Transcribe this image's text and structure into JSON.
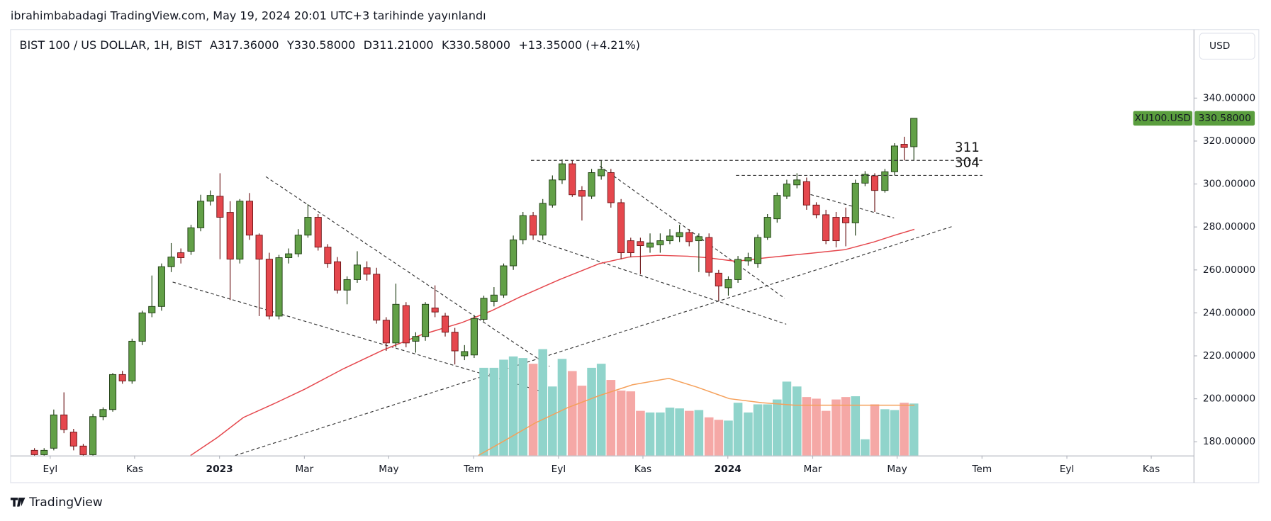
{
  "caption": "ibrahimbabadagi TradingView.com, May 19, 2024 20:01 UTC+3 tarihinde yayınlandı",
  "brand": "TradingView",
  "currency_button": "USD",
  "chart_data": {
    "type": "candlestick",
    "title": "BIST 100 / US DOLLAR, 1H, BIST",
    "ohlc": [
      {
        "key": "A",
        "value": "317.36000"
      },
      {
        "key": "Y",
        "value": "330.58000"
      },
      {
        "key": "D",
        "value": "311.21000"
      },
      {
        "key": "K",
        "value": "330.58000"
      }
    ],
    "change": "+13.35000 (+4.21%)",
    "symbol_tag": "XU100.USD",
    "last_label": "330.58000",
    "up_color": "#62a047",
    "down_color": "#e5474d",
    "up_border": "#1e3d12",
    "down_border": "#6b1416",
    "volume_up_color": "#90d4cb",
    "volume_down_color": "#f5a8a6",
    "tag_color": "#5a9e3e",
    "x": [
      2022.636,
      2022.655,
      2022.674,
      2022.694,
      2022.713,
      2022.732,
      2022.751,
      2022.771,
      2022.79,
      2022.809,
      2022.828,
      2022.848,
      2022.867,
      2022.886,
      2022.905,
      2022.924,
      2022.944,
      2022.963,
      2022.982,
      2023.001,
      2023.021,
      2023.04,
      2023.059,
      2023.078,
      2023.098,
      2023.117,
      2023.136,
      2023.155,
      2023.174,
      2023.194,
      2023.213,
      2023.232,
      2023.251,
      2023.271,
      2023.29,
      2023.309,
      2023.328,
      2023.347,
      2023.367,
      2023.386,
      2023.405,
      2023.424,
      2023.444,
      2023.463,
      2023.482,
      2023.501,
      2023.52,
      2023.54,
      2023.559,
      2023.578,
      2023.597,
      2023.617,
      2023.636,
      2023.655,
      2023.674,
      2023.694,
      2023.713,
      2023.732,
      2023.751,
      2023.77,
      2023.79,
      2023.809,
      2023.828,
      2023.847,
      2023.867,
      2023.886,
      2023.905,
      2023.924,
      2023.943,
      2023.963,
      2023.982,
      2024.001,
      2024.02,
      2024.04,
      2024.059,
      2024.078,
      2024.097,
      2024.116,
      2024.136,
      2024.155,
      2024.174,
      2024.193,
      2024.213,
      2024.232,
      2024.251,
      2024.27,
      2024.289,
      2024.309,
      2024.328,
      2024.347,
      2024.366
    ],
    "open": [
      176,
      174,
      177,
      192.5,
      184.5,
      178,
      174,
      191.7,
      195,
      211.3,
      208.3,
      226.8,
      240,
      243,
      261.5,
      268,
      268.7,
      279.6,
      292,
      294.3,
      286.8,
      265,
      292,
      276.2,
      265,
      238.5,
      265.7,
      267.5,
      276.2,
      284.5,
      270.6,
      263.8,
      250.6,
      255.5,
      261,
      258,
      236.6,
      226,
      243.4,
      226.8,
      229,
      242.3,
      238.5,
      231,
      220,
      220.4,
      237,
      245.3,
      248.3,
      261.9,
      274,
      285.3,
      276.2,
      290.2,
      301.9,
      309.4,
      297,
      294.3,
      303.8,
      305.3,
      291.3,
      273.6,
      273.2,
      270.6,
      271.7,
      273.6,
      275.5,
      277.4,
      273.6,
      275.1,
      258.5,
      251.7,
      255.5,
      264.2,
      263,
      275.1,
      283.8,
      294.3,
      299.6,
      301.1,
      290.2,
      285.7,
      284.5,
      284.5,
      281.9,
      300.4,
      303.8,
      297,
      305.7,
      318.5,
      317.36
    ],
    "high": [
      177,
      177,
      195,
      203,
      186,
      179,
      193,
      196,
      212,
      213,
      228,
      241,
      257.4,
      263,
      272.5,
      270,
      281,
      295,
      297,
      305,
      292,
      293,
      295.8,
      277,
      268,
      267,
      270,
      279,
      290.6,
      286,
      272,
      266,
      257,
      268.7,
      264,
      261,
      238,
      253.6,
      245,
      231,
      245,
      252.8,
      240,
      233,
      225,
      239,
      248,
      252,
      263,
      276,
      287,
      287,
      293,
      304,
      311.5,
      311,
      299,
      307,
      311,
      307,
      293,
      275,
      275,
      277,
      277,
      279,
      281,
      279,
      277,
      277,
      260,
      257,
      266.5,
      268,
      276.5,
      286,
      296,
      302,
      305,
      303,
      291.5,
      288,
      287,
      289,
      302,
      306,
      305,
      307,
      319,
      322,
      330.58
    ],
    "low": [
      172,
      173,
      176,
      184,
      176,
      172,
      172,
      190,
      194,
      207,
      207,
      225,
      238,
      241,
      259,
      263,
      267,
      278,
      290,
      265,
      246,
      263,
      274,
      238.5,
      237,
      237,
      263,
      266,
      275,
      269,
      261,
      249,
      244,
      254,
      255,
      235,
      222.3,
      224,
      224,
      221.5,
      227,
      238,
      229,
      216,
      218,
      219,
      236,
      243,
      247,
      260,
      272,
      274,
      274,
      289,
      300,
      294,
      283,
      293,
      302,
      289,
      265,
      266,
      258,
      268,
      268,
      272,
      273,
      271,
      259,
      257,
      245.7,
      248,
      254,
      262,
      261,
      274,
      282,
      293,
      298,
      288,
      284,
      272,
      270.5,
      271,
      276,
      299,
      287,
      296,
      304,
      311,
      311.21
    ],
    "close": [
      174,
      176,
      192.5,
      185.7,
      178,
      174,
      191.7,
      195,
      211.3,
      208.3,
      226.8,
      240,
      243,
      261.5,
      266,
      265.7,
      279.6,
      292,
      294.7,
      284.5,
      265,
      292,
      276.2,
      265,
      238.5,
      265.7,
      267.5,
      276.2,
      284.5,
      270.6,
      263,
      250.6,
      255.5,
      262.3,
      258,
      236.6,
      226,
      244,
      226,
      229,
      244,
      240.4,
      231,
      222.3,
      222,
      237.4,
      246.8,
      248.3,
      261.9,
      274,
      285.3,
      276.2,
      291,
      301.9,
      309.4,
      295,
      294.3,
      305.3,
      306.8,
      291.3,
      268,
      268,
      271.3,
      272.5,
      273.6,
      275.8,
      277.4,
      273.2,
      275.5,
      258.9,
      252.5,
      255.5,
      264.9,
      265.7,
      275.1,
      284.5,
      294.7,
      300,
      301.9,
      290.2,
      285.7,
      273.6,
      273.6,
      281.9,
      300.4,
      304.5,
      297,
      305.7,
      317.7,
      317,
      330.58
    ],
    "volume": [
      null,
      null,
      null,
      null,
      null,
      null,
      null,
      null,
      null,
      null,
      null,
      null,
      null,
      null,
      null,
      null,
      null,
      null,
      null,
      null,
      null,
      null,
      null,
      null,
      null,
      null,
      null,
      null,
      null,
      null,
      null,
      null,
      null,
      null,
      null,
      null,
      null,
      null,
      null,
      null,
      null,
      null,
      null,
      null,
      null,
      null,
      108,
      108,
      118,
      122,
      120,
      113,
      131,
      85,
      119,
      104,
      86,
      108,
      113,
      93,
      80,
      79,
      55,
      53,
      53,
      59,
      58,
      55,
      56,
      47,
      44,
      43,
      65,
      53,
      63,
      63,
      69,
      91,
      85,
      72,
      70,
      55,
      69,
      72,
      73,
      20,
      63,
      57,
      56,
      65,
      64
    ],
    "ma": {
      "color": "#e5474d",
      "x": [
        2022.943,
        2022.996,
        2023.047,
        2023.11,
        2023.168,
        2023.244,
        2023.321,
        2023.397,
        2023.477,
        2023.535,
        2023.592,
        2023.669,
        2023.748,
        2023.806,
        2023.863,
        2023.921,
        2023.959,
        2024.016,
        2024.077,
        2024.153,
        2024.23,
        2024.287,
        2024.329,
        2024.367
      ],
      "values": [
        173.6,
        182,
        191.3,
        198,
        204.5,
        214,
        222.6,
        229.8,
        235.5,
        241,
        247.5,
        255.5,
        263,
        266,
        266.8,
        266.4,
        265.7,
        264,
        265.7,
        267.5,
        269.4,
        273,
        276.2,
        278.9
      ]
    },
    "volume_ma": {
      "color": "#f5a05a",
      "x": [
        2023.509,
        2023.557,
        2023.621,
        2023.685,
        2023.748,
        2023.812,
        2023.884,
        2023.94,
        2024.003,
        2024.067,
        2024.131,
        2024.227,
        2024.322,
        2024.367
      ],
      "values": [
        0,
        17,
        40,
        59,
        74,
        87,
        95,
        84,
        70,
        65,
        62,
        62,
        62,
        62
      ]
    },
    "levels": [
      311,
      304
    ],
    "xlim": [
      2022.589,
      2024.917
    ],
    "xticks": [
      {
        "value": 2022.667,
        "label": "Eyl"
      },
      {
        "value": 2022.833,
        "label": "Kas"
      },
      2023,
      {
        "value": 2023.167,
        "label": "Mar"
      },
      {
        "value": 2023.333,
        "label": "May"
      },
      {
        "value": 2023.5,
        "label": "Tem"
      },
      {
        "value": 2023.667,
        "label": "Eyl"
      },
      {
        "value": 2023.833,
        "label": "Kas"
      },
      2024,
      {
        "value": 2024.167,
        "label": "Mar"
      },
      {
        "value": 2024.333,
        "label": "May"
      },
      {
        "value": 2024.5,
        "label": "Tem"
      },
      {
        "value": 2024.667,
        "label": "Eyl"
      },
      {
        "value": 2024.833,
        "label": "Kas"
      }
    ],
    "ylim": [
      173.6,
      371.7
    ],
    "yticks": [
      {
        "value": 180,
        "label": "180.00000"
      },
      {
        "value": 200,
        "label": "200.00000"
      },
      {
        "value": 220,
        "label": "220.00000"
      },
      {
        "value": 240,
        "label": "240.00000"
      },
      {
        "value": 260,
        "label": "260.00000"
      },
      {
        "value": 280,
        "label": "280.00000"
      },
      {
        "value": 300,
        "label": "300.00000"
      },
      {
        "value": 320,
        "label": "320.00000"
      },
      {
        "value": 340,
        "label": "340.00000"
      }
    ],
    "grid": false
  }
}
